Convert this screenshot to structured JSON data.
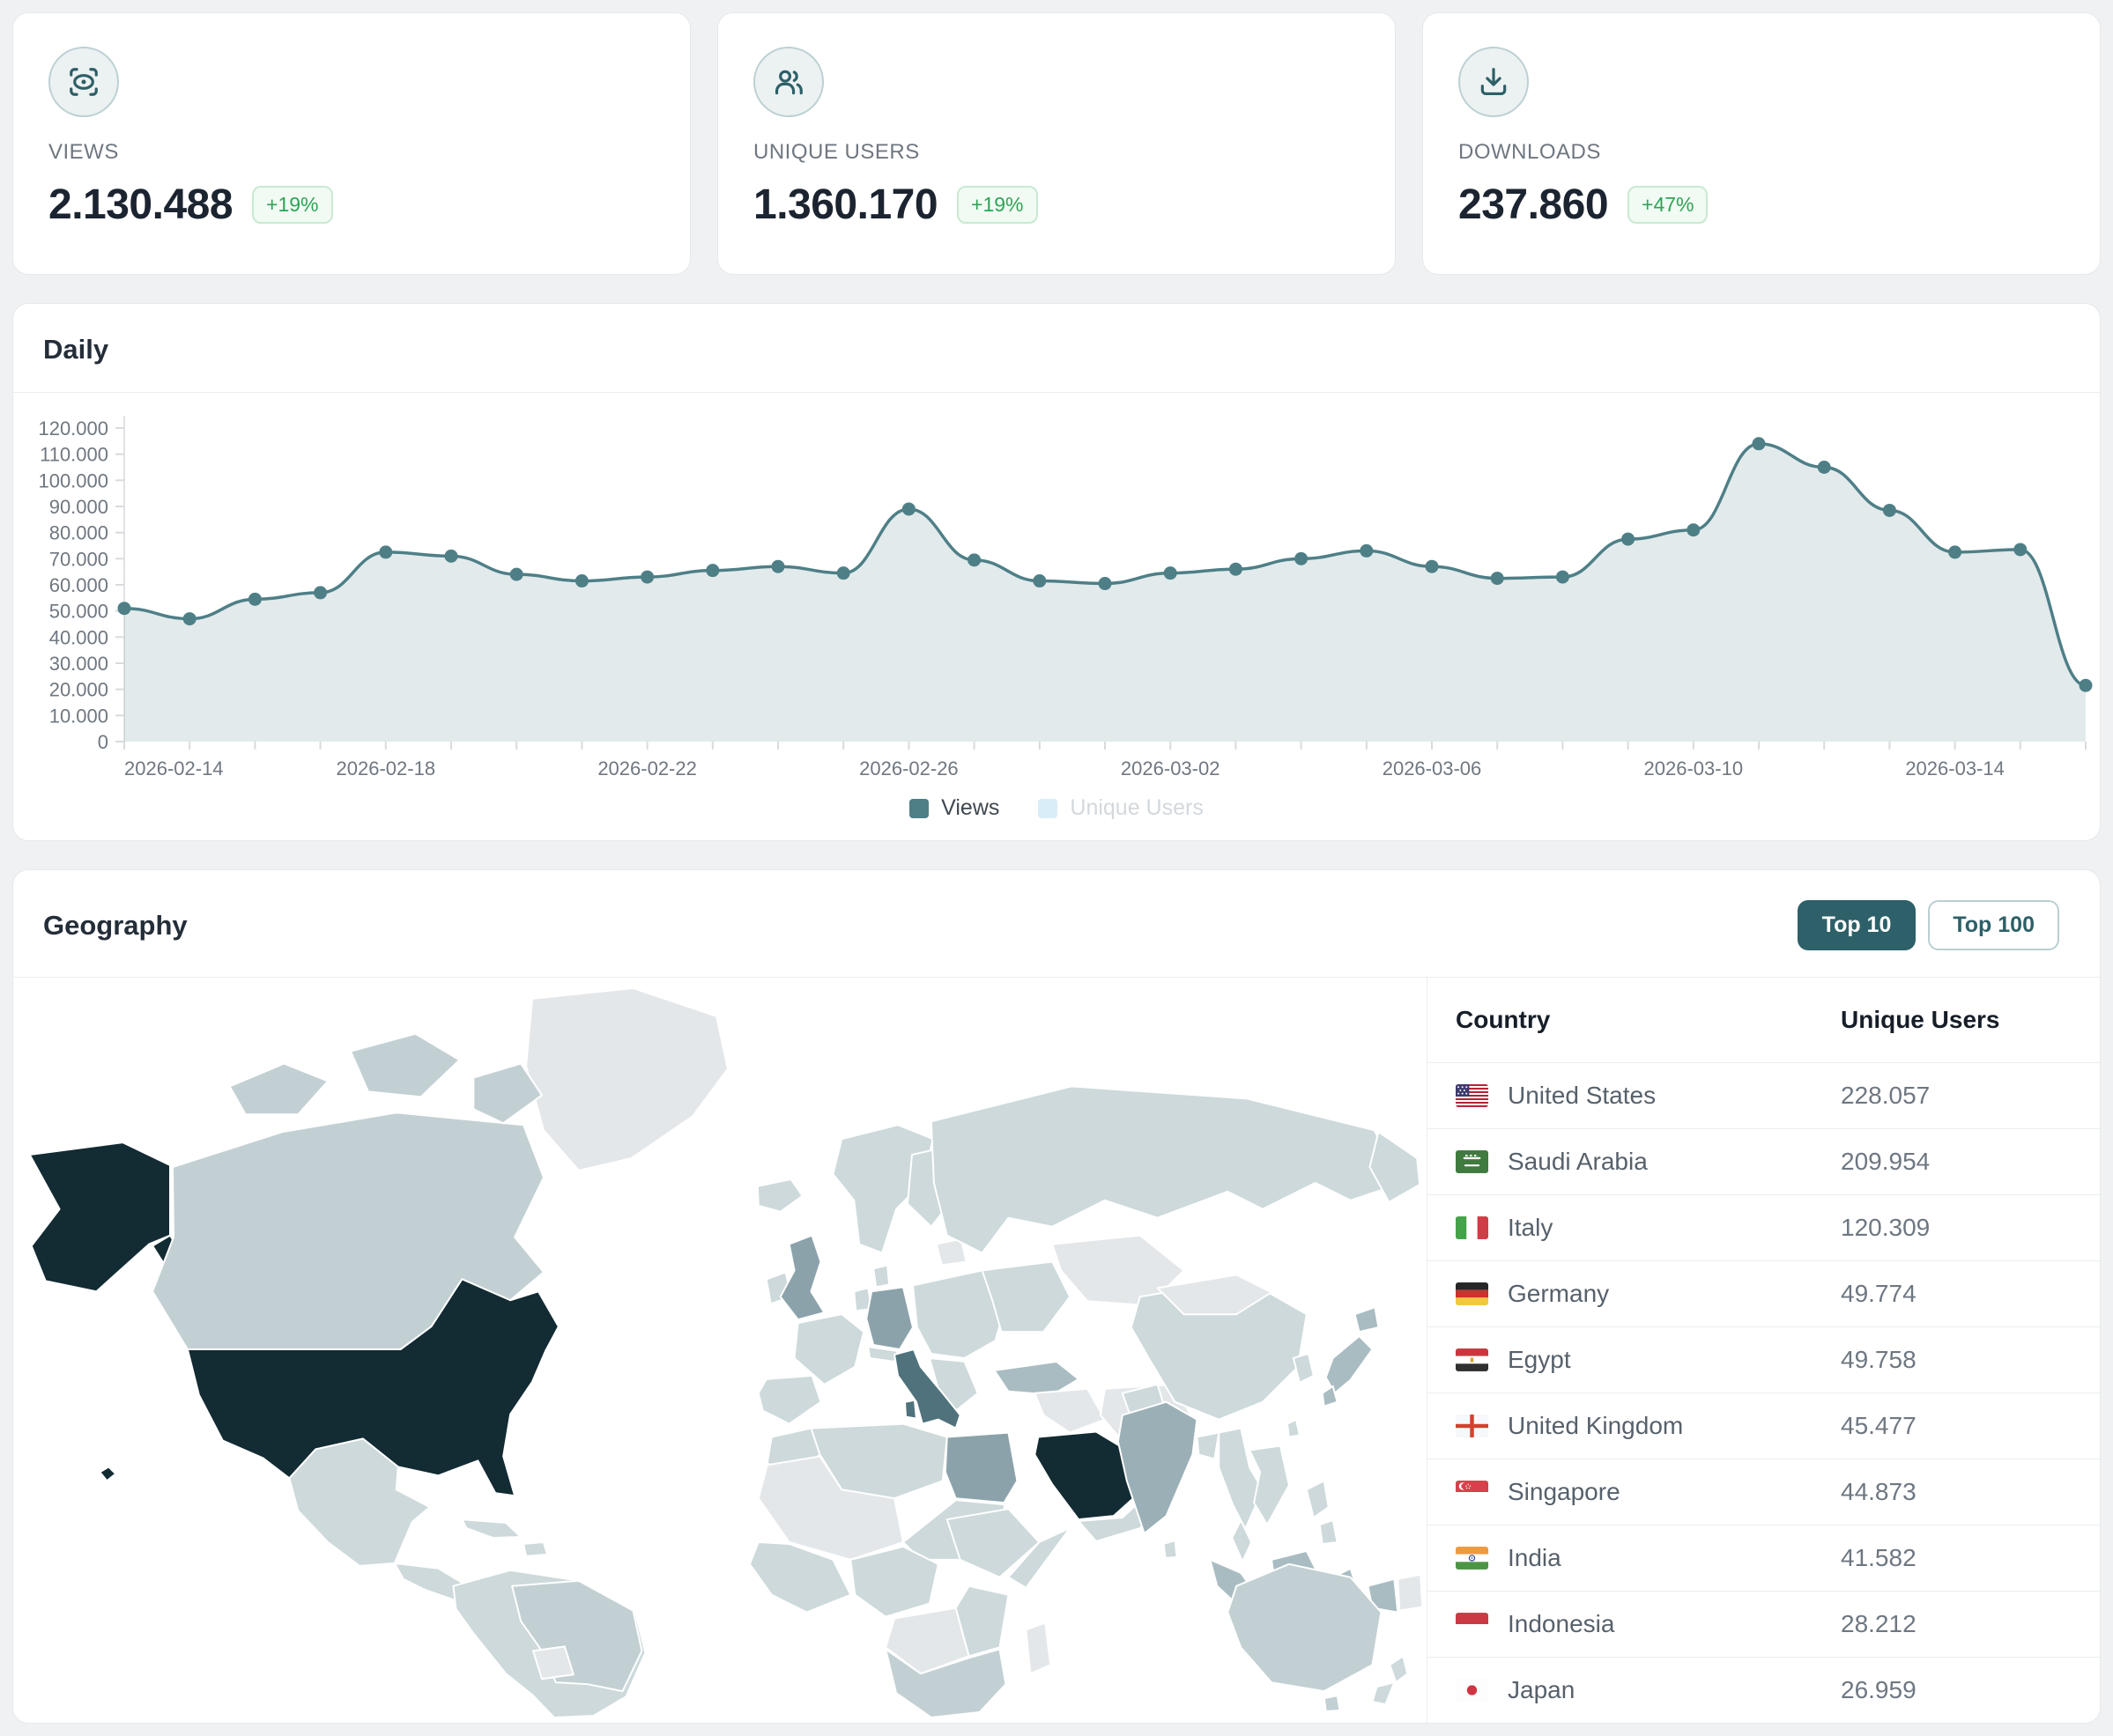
{
  "colors": {
    "accent_teal": "#2d6068",
    "chart_line": "#4e7f87",
    "chart_fill": "rgba(78,127,135,0.16)",
    "badge_green": "#2fa356",
    "map_high": "#132b33",
    "map_low": "#cdd9db",
    "page_bg": "#f0f1f3"
  },
  "stats": [
    {
      "icon": "eye",
      "label": "VIEWS",
      "value": "2.130.488",
      "delta": "+19%"
    },
    {
      "icon": "users",
      "label": "UNIQUE USERS",
      "value": "1.360.170",
      "delta": "+19%"
    },
    {
      "icon": "download",
      "label": "DOWNLOADS",
      "value": "237.860",
      "delta": "+47%"
    }
  ],
  "daily": {
    "title": "Daily",
    "legend": [
      {
        "label": "Views",
        "active": true
      },
      {
        "label": "Unique Users",
        "active": false
      }
    ],
    "chart_data": {
      "type": "area",
      "title": "Daily",
      "xlabel": "",
      "ylabel": "",
      "ylim": [
        0,
        120000
      ],
      "y_tick_step": 10000,
      "grid": false,
      "legend_position": "bottom",
      "hidden_series": [
        "Unique Users"
      ],
      "x": [
        "2026-02-14",
        "2026-02-15",
        "2026-02-16",
        "2026-02-17",
        "2026-02-18",
        "2026-02-19",
        "2026-02-20",
        "2026-02-21",
        "2026-02-22",
        "2026-02-23",
        "2026-02-24",
        "2026-02-25",
        "2026-02-26",
        "2026-02-27",
        "2026-02-28",
        "2026-03-01",
        "2026-03-02",
        "2026-03-03",
        "2026-03-04",
        "2026-03-05",
        "2026-03-06",
        "2026-03-07",
        "2026-03-08",
        "2026-03-09",
        "2026-03-10",
        "2026-03-11",
        "2026-03-12",
        "2026-03-13",
        "2026-03-14",
        "2026-03-15",
        "2026-03-16"
      ],
      "x_tick_labels": [
        "2026-02-14",
        "2026-02-18",
        "2026-02-22",
        "2026-02-26",
        "2026-03-02",
        "2026-03-06",
        "2026-03-10",
        "2026-03-14"
      ],
      "series": [
        {
          "name": "Views",
          "values": [
            51000,
            47000,
            54500,
            57000,
            72500,
            71000,
            64000,
            61500,
            63000,
            65500,
            67000,
            64500,
            89000,
            69500,
            61500,
            60500,
            64500,
            66000,
            70000,
            73000,
            67000,
            62500,
            63000,
            77500,
            81000,
            114000,
            105000,
            88500,
            72500,
            73500,
            21500
          ]
        }
      ]
    }
  },
  "geography": {
    "title": "Geography",
    "buttons": [
      {
        "label": "Top 10",
        "active": true
      },
      {
        "label": "Top 100",
        "active": false
      }
    ],
    "table": {
      "headers": [
        "Country",
        "Unique Users"
      ],
      "rows": [
        {
          "flag": "us",
          "country": "United States",
          "value": "228.057"
        },
        {
          "flag": "sa",
          "country": "Saudi Arabia",
          "value": "209.954"
        },
        {
          "flag": "it",
          "country": "Italy",
          "value": "120.309"
        },
        {
          "flag": "de",
          "country": "Germany",
          "value": "49.774"
        },
        {
          "flag": "eg",
          "country": "Egypt",
          "value": "49.758"
        },
        {
          "flag": "gb",
          "country": "United Kingdom",
          "value": "45.477"
        },
        {
          "flag": "sg",
          "country": "Singapore",
          "value": "44.873"
        },
        {
          "flag": "in",
          "country": "India",
          "value": "41.582"
        },
        {
          "flag": "id",
          "country": "Indonesia",
          "value": "28.212"
        },
        {
          "flag": "jp",
          "country": "Japan",
          "value": "26.959"
        }
      ]
    }
  }
}
